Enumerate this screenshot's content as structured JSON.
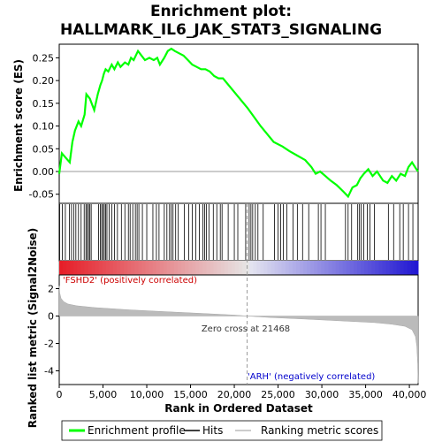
{
  "chart_data": {
    "type": "line",
    "title_line1": "Enrichment plot:",
    "title_line2": "HALLMARK_IL6_JAK_STAT3_SIGNALING",
    "top_panel": {
      "ylabel": "Enrichment score (ES)",
      "ylim": [
        -0.07,
        0.28
      ],
      "yticks": [
        -0.05,
        0.0,
        0.05,
        0.1,
        0.15,
        0.2,
        0.25
      ],
      "ytick_labels": [
        "-0.05",
        "0.00",
        "0.05",
        "0.10",
        "0.15",
        "0.20",
        "0.25"
      ],
      "series": [
        {
          "name": "Enrichment profile",
          "color": "#00ff00",
          "x": [
            0,
            300,
            1200,
            1500,
            1800,
            2200,
            2500,
            2900,
            3100,
            3300,
            3500,
            4000,
            4400,
            4700,
            4900,
            5100,
            5300,
            5600,
            6000,
            6300,
            6700,
            7000,
            7500,
            7900,
            8200,
            8500,
            9000,
            9400,
            9800,
            10300,
            10800,
            11200,
            11500,
            12000,
            12400,
            12800,
            13200,
            13700,
            14200,
            14700,
            15200,
            15700,
            16200,
            16700,
            17200,
            17700,
            18200,
            18700,
            21500,
            23000,
            24500,
            25500,
            26300,
            27200,
            28100,
            28800,
            29300,
            29800,
            30400,
            31000,
            31700,
            32500,
            33000,
            33500,
            34000,
            34400,
            34800,
            35300,
            35800,
            36300,
            37000,
            37500,
            38000,
            38500,
            39000,
            39500,
            39900,
            40300,
            40800,
            41000
          ],
          "y": [
            -0.005,
            0.04,
            0.02,
            0.065,
            0.09,
            0.11,
            0.1,
            0.125,
            0.17,
            0.165,
            0.16,
            0.135,
            0.17,
            0.19,
            0.2,
            0.215,
            0.225,
            0.22,
            0.235,
            0.225,
            0.24,
            0.23,
            0.24,
            0.235,
            0.25,
            0.245,
            0.265,
            0.255,
            0.245,
            0.25,
            0.245,
            0.25,
            0.235,
            0.25,
            0.265,
            0.27,
            0.265,
            0.26,
            0.255,
            0.245,
            0.235,
            0.23,
            0.225,
            0.225,
            0.22,
            0.21,
            0.205,
            0.205,
            0.14,
            0.1,
            0.065,
            0.055,
            0.045,
            0.035,
            0.025,
            0.01,
            -0.005,
            0.0,
            -0.01,
            -0.02,
            -0.03,
            -0.045,
            -0.055,
            -0.035,
            -0.03,
            -0.015,
            -0.005,
            0.005,
            -0.01,
            0.0,
            -0.02,
            -0.025,
            -0.01,
            -0.02,
            -0.005,
            -0.01,
            0.01,
            0.02,
            0.005,
            0.0
          ]
        }
      ]
    },
    "hits": [
      50,
      350,
      700,
      1150,
      1400,
      1650,
      1900,
      2200,
      2500,
      2850,
      3050,
      3200,
      3350,
      3500,
      3650,
      4500,
      4700,
      4850,
      5000,
      5150,
      5300,
      5450,
      5700,
      6000,
      6300,
      6650,
      7100,
      7500,
      7900,
      8100,
      8400,
      8700,
      8900,
      9100,
      9500,
      10000,
      10700,
      11100,
      11400,
      12000,
      12300,
      12600,
      12800,
      13000,
      13300,
      13600,
      14300,
      14800,
      15200,
      15600,
      16000,
      16400,
      16600,
      16800,
      17100,
      17600,
      18000,
      18400,
      18600,
      19300,
      20000,
      20400,
      21300,
      21700,
      21900,
      22100,
      22400,
      22700,
      23300,
      24600,
      25000,
      25300,
      25600,
      26000,
      26700,
      27200,
      27800,
      28500,
      29600,
      29900,
      30400,
      32700,
      33000,
      33400,
      34100,
      34300,
      34500,
      34800,
      35200,
      35500,
      36000,
      37600,
      38200,
      38900,
      39300,
      39900,
      40400
    ],
    "ranking_panel": {
      "ylabel": "Ranked list metric (Signal2Noise)",
      "xlabel": "Rank in Ordered Dataset",
      "ylim": [
        -5,
        3
      ],
      "yticks": [
        -4,
        -2,
        0,
        2
      ],
      "ytick_labels": [
        "-4",
        "-2",
        "0",
        "2"
      ],
      "xlim": [
        0,
        41000
      ],
      "xticks": [
        0,
        5000,
        10000,
        15000,
        20000,
        25000,
        30000,
        35000,
        40000
      ],
      "xtick_labels": [
        "0",
        "5,000",
        "10,000",
        "15,000",
        "20,000",
        "25,000",
        "30,000",
        "35,000",
        "40,000"
      ],
      "zero_cross": 21468,
      "zero_cross_label": "Zero cross at 21468",
      "pos_label": "'FSHD2' (positively correlated)",
      "neg_label": "'ARH' (negatively correlated)",
      "metric_x": [
        0,
        50,
        200,
        500,
        1000,
        2000,
        4000,
        8000,
        12000,
        16000,
        20000,
        21468,
        24000,
        28000,
        32000,
        36000,
        38000,
        39500,
        40300,
        40700,
        40850,
        40950,
        41000
      ],
      "metric_y": [
        2.2,
        1.7,
        1.3,
        1.05,
        0.88,
        0.75,
        0.62,
        0.45,
        0.32,
        0.2,
        0.07,
        0.0,
        -0.1,
        -0.22,
        -0.35,
        -0.48,
        -0.6,
        -0.75,
        -1.0,
        -1.5,
        -2.2,
        -3.5,
        -4.9
      ]
    },
    "legend": {
      "items": [
        {
          "label": "Enrichment profile",
          "color": "#00ff00"
        },
        {
          "label": "Hits",
          "color": "#000000"
        },
        {
          "label": "Ranking metric scores",
          "color": "#bbbbbb"
        }
      ]
    }
  }
}
